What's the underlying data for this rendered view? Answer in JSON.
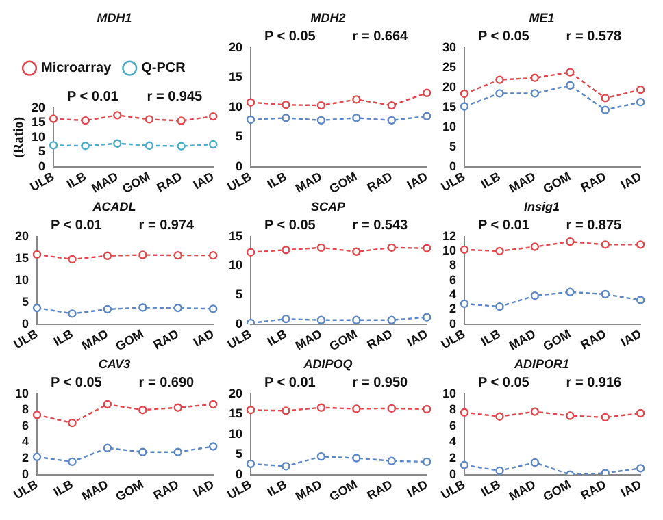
{
  "chart_data": [
    {
      "type": "line",
      "title": "MDH1",
      "ylabel": "(Ratio)",
      "categories": [
        "ULB",
        "ILB",
        "MAD",
        "GOM",
        "RAD",
        "IAD"
      ],
      "ylim": [
        0,
        20
      ],
      "yticks": [
        0,
        5,
        10,
        15,
        20
      ],
      "annotations": [
        "P < 0.01",
        "r = 0.945"
      ],
      "legend": "top",
      "marker": "circle",
      "line_style": "dashed",
      "grid": false,
      "series": [
        {
          "name": "Microarray",
          "color": "#e0474c",
          "values": [
            16.3,
            15.7,
            17.5,
            16.1,
            15.6,
            17.1
          ]
        },
        {
          "name": "Q-PCR",
          "color": "#4bacc6",
          "values": [
            7.3,
            7.1,
            7.9,
            7.2,
            7.0,
            7.6
          ]
        }
      ]
    },
    {
      "type": "line",
      "title": "MDH2",
      "categories": [
        "ULB",
        "ILB",
        "MAD",
        "GOM",
        "RAD",
        "IAD"
      ],
      "ylim": [
        0,
        20
      ],
      "yticks": [
        0,
        5,
        10,
        15,
        20
      ],
      "annotations": [
        "P < 0.05",
        "r = 0.664"
      ],
      "marker": "circle",
      "line_style": "dashed",
      "grid": false,
      "series": [
        {
          "color": "#e0474c",
          "values": [
            10.8,
            10.4,
            10.3,
            11.3,
            10.3,
            12.4
          ]
        },
        {
          "color": "#5b86c4",
          "values": [
            7.9,
            8.2,
            7.8,
            8.2,
            7.8,
            8.5
          ]
        }
      ]
    },
    {
      "type": "line",
      "title": "ME1",
      "categories": [
        "ULB",
        "ILB",
        "MAD",
        "GOM",
        "RAD",
        "IAD"
      ],
      "ylim": [
        0,
        30
      ],
      "yticks": [
        0,
        5,
        10,
        15,
        20,
        25,
        30
      ],
      "annotations": [
        "P < 0.05",
        "r = 0.578"
      ],
      "marker": "circle",
      "line_style": "dashed",
      "grid": false,
      "series": [
        {
          "color": "#e0474c",
          "values": [
            18.4,
            21.9,
            22.4,
            23.8,
            17.3,
            19.4
          ]
        },
        {
          "color": "#5b86c4",
          "values": [
            15.2,
            18.5,
            18.5,
            20.5,
            14.3,
            16.3
          ]
        }
      ]
    },
    {
      "type": "line",
      "title": "ACADL",
      "categories": [
        "ULB",
        "ILB",
        "MAD",
        "GOM",
        "RAD",
        "IAD"
      ],
      "ylim": [
        0,
        20
      ],
      "yticks": [
        0,
        5,
        10,
        15,
        20
      ],
      "annotations": [
        "P < 0.01",
        "r = 0.974"
      ],
      "marker": "circle",
      "line_style": "dashed",
      "grid": false,
      "series": [
        {
          "color": "#e0474c",
          "values": [
            15.9,
            14.8,
            15.6,
            15.8,
            15.7,
            15.7
          ]
        },
        {
          "color": "#5b86c4",
          "values": [
            3.7,
            2.4,
            3.4,
            3.8,
            3.7,
            3.5
          ]
        }
      ]
    },
    {
      "type": "line",
      "title": "SCAP",
      "categories": [
        "ULB",
        "ILB",
        "MAD",
        "GOM",
        "RAD",
        "IAD"
      ],
      "ylim": [
        0,
        15
      ],
      "yticks": [
        0,
        5,
        10,
        15
      ],
      "annotations": [
        "P < 0.05",
        "r = 0.543"
      ],
      "marker": "circle",
      "line_style": "dashed",
      "grid": false,
      "series": [
        {
          "color": "#e0474c",
          "values": [
            12.3,
            12.7,
            13.1,
            12.4,
            13.1,
            13.0
          ]
        },
        {
          "color": "#5b86c4",
          "values": [
            0.2,
            0.9,
            0.7,
            0.7,
            0.7,
            1.2
          ]
        }
      ]
    },
    {
      "type": "line",
      "title": "Insig1",
      "categories": [
        "ULB",
        "ILB",
        "MAD",
        "GOM",
        "RAD",
        "IAD"
      ],
      "ylim": [
        0,
        12
      ],
      "yticks": [
        0,
        2,
        4,
        6,
        8,
        10,
        12
      ],
      "annotations": [
        "P < 0.01",
        "r = 0.875"
      ],
      "marker": "circle",
      "line_style": "dashed",
      "grid": false,
      "series": [
        {
          "color": "#e0474c",
          "values": [
            10.2,
            10.0,
            10.6,
            11.3,
            10.9,
            10.9
          ]
        },
        {
          "color": "#5b86c4",
          "values": [
            2.8,
            2.4,
            3.9,
            4.4,
            4.1,
            3.3
          ]
        }
      ]
    },
    {
      "type": "line",
      "title": "CAV3",
      "categories": [
        "ULB",
        "ILB",
        "MAD",
        "GOM",
        "RAD",
        "IAD"
      ],
      "ylim": [
        0,
        10
      ],
      "yticks": [
        0,
        2,
        4,
        6,
        8,
        10
      ],
      "annotations": [
        "P < 0.05",
        "r = 0.690"
      ],
      "marker": "circle",
      "line_style": "dashed",
      "grid": false,
      "series": [
        {
          "color": "#e0474c",
          "values": [
            7.4,
            6.4,
            8.7,
            8.0,
            8.3,
            8.7
          ]
        },
        {
          "color": "#5b86c4",
          "values": [
            2.2,
            1.6,
            3.3,
            2.8,
            2.8,
            3.5
          ]
        }
      ]
    },
    {
      "type": "line",
      "title": "ADIPOQ",
      "categories": [
        "ULB",
        "ILB",
        "MAD",
        "GOM",
        "RAD",
        "IAD"
      ],
      "ylim": [
        0,
        20
      ],
      "yticks": [
        0,
        5,
        10,
        15,
        20
      ],
      "annotations": [
        "P < 0.01",
        "r = 0.950"
      ],
      "marker": "circle",
      "line_style": "dashed",
      "grid": false,
      "series": [
        {
          "color": "#e0474c",
          "values": [
            16.0,
            15.8,
            16.6,
            16.3,
            16.4,
            16.2
          ]
        },
        {
          "color": "#5b86c4",
          "values": [
            2.7,
            2.1,
            4.5,
            4.1,
            3.4,
            3.2
          ]
        }
      ]
    },
    {
      "type": "line",
      "title": "ADIPOR1",
      "categories": [
        "ULB",
        "ILB",
        "MAD",
        "GOM",
        "RAD",
        "IAD"
      ],
      "ylim": [
        0,
        10
      ],
      "yticks": [
        0,
        2,
        4,
        6,
        8,
        10
      ],
      "annotations": [
        "P < 0.05",
        "r = 0.916"
      ],
      "marker": "circle",
      "line_style": "dashed",
      "grid": false,
      "series": [
        {
          "color": "#e0474c",
          "values": [
            7.7,
            7.2,
            7.8,
            7.3,
            7.1,
            7.6
          ]
        },
        {
          "color": "#5b86c4",
          "values": [
            1.2,
            0.5,
            1.5,
            0.0,
            0.2,
            0.8
          ]
        }
      ]
    }
  ]
}
